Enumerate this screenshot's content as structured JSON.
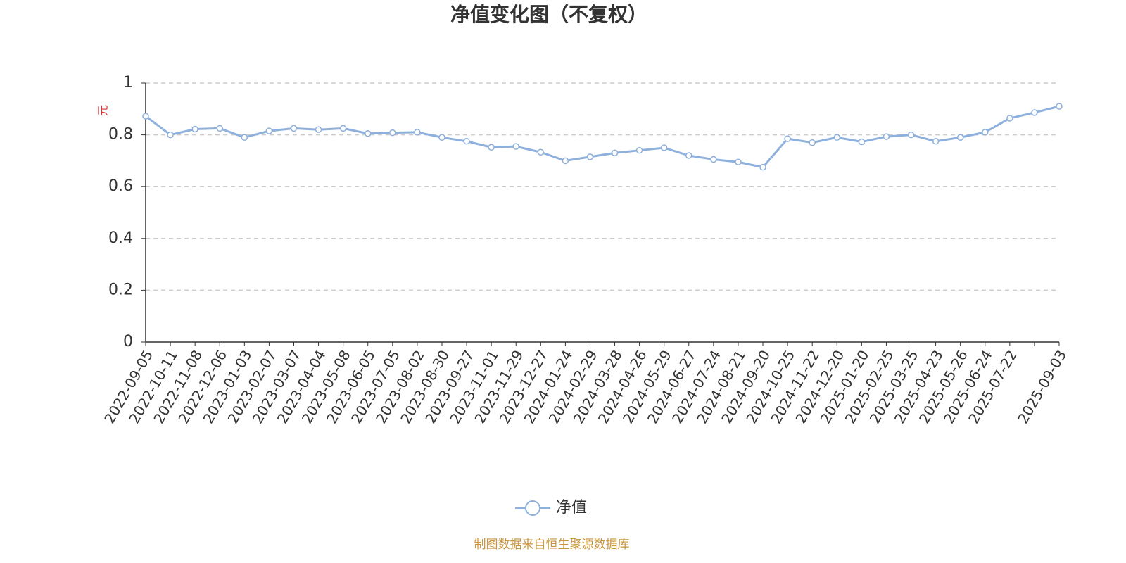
{
  "chart_data": {
    "type": "line",
    "title": "净值变化图（不复权）",
    "y_axis_label": "元",
    "categories": [
      "2022-09-05",
      "2022-10-11",
      "2022-11-08",
      "2022-12-06",
      "2023-01-03",
      "2023-02-07",
      "2023-03-07",
      "2023-04-04",
      "2023-05-08",
      "2023-06-05",
      "2023-07-05",
      "2023-08-02",
      "2023-08-30",
      "2023-09-27",
      "2023-11-01",
      "2023-11-29",
      "2023-12-27",
      "2024-01-24",
      "2024-02-29",
      "2024-03-28",
      "2024-04-26",
      "2024-05-29",
      "2024-06-27",
      "2024-07-24",
      "2024-08-21",
      "2024-09-20",
      "2024-10-25",
      "2024-11-22",
      "2024-12-20",
      "2025-01-20",
      "2025-02-25",
      "2025-03-25",
      "2025-04-23",
      "2025-05-26",
      "2025-06-24",
      "2025-07-22",
      null,
      "2025-09-03"
    ],
    "series": [
      {
        "name": "净值",
        "color": "#8eb0dc",
        "values": [
          0.872,
          0.8,
          0.822,
          0.825,
          0.79,
          0.815,
          0.825,
          0.82,
          0.825,
          0.805,
          0.808,
          0.81,
          0.79,
          0.775,
          0.752,
          0.755,
          0.733,
          0.7,
          0.715,
          0.73,
          0.74,
          0.75,
          0.72,
          0.705,
          0.695,
          0.675,
          0.785,
          0.77,
          0.79,
          0.773,
          0.793,
          0.8,
          0.775,
          0.79,
          0.81,
          0.864,
          0.886,
          0.91
        ]
      }
    ],
    "ylim": [
      0,
      1
    ],
    "yticks": [
      0,
      0.2,
      0.4,
      0.6,
      0.8,
      1
    ],
    "grid": true,
    "legend": "bottom",
    "footer": "制图数据来自恒生聚源数据库"
  }
}
